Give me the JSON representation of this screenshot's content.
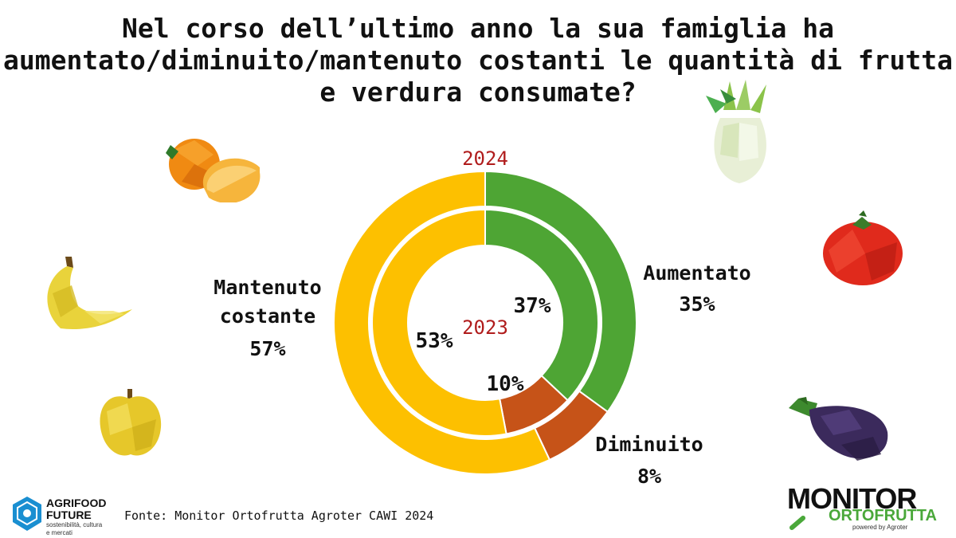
{
  "title": {
    "line1": "Nel corso dell’ultimo anno la sua famiglia ha",
    "line2": "aumentato/diminuito/mantenuto costanti le quantità di frutta",
    "line3": "e verdura consumate?"
  },
  "chart_data": {
    "type": "donut",
    "categories": [
      "Aumentato",
      "Diminuito",
      "Mantenuto costante"
    ],
    "colors": [
      "#4ea534",
      "#c65318",
      "#fdc000"
    ],
    "series": [
      {
        "name": "2024",
        "values": [
          35,
          8,
          57
        ],
        "ring": "outer"
      },
      {
        "name": "2023",
        "values": [
          37,
          10,
          53
        ],
        "ring": "inner"
      }
    ],
    "labels_outer": {
      "aumentato": {
        "name": "Aumentato",
        "value": "35%"
      },
      "diminuito": {
        "name": "Diminuito",
        "value": "8%"
      },
      "mantenuto": {
        "name_line1": "Mantenuto",
        "name_line2": "costante",
        "value": "57%"
      }
    },
    "labels_inner": {
      "aumentato": "37%",
      "diminuito": "10%",
      "mantenuto": "53%"
    },
    "year_labels": {
      "outer": "2024",
      "inner": "2023"
    },
    "year_label_color": "#b01c1c"
  },
  "source": "Fonte: Monitor Ortofrutta Agroter CAWI 2024",
  "logos": {
    "agrifood_line1": "AGRIFOOD",
    "agrifood_line2": "FUTURE",
    "agrifood_tagline": "sostenibilità, cultura e mercati",
    "monitor_top": "MONITOR",
    "monitor_bottom": "ORTOFRUTTA",
    "monitor_powered": "powered by Agroter"
  },
  "decorations": [
    "orange-icon",
    "banana-icon",
    "apple-icon",
    "fennel-icon",
    "tomato-icon",
    "eggplant-icon"
  ]
}
